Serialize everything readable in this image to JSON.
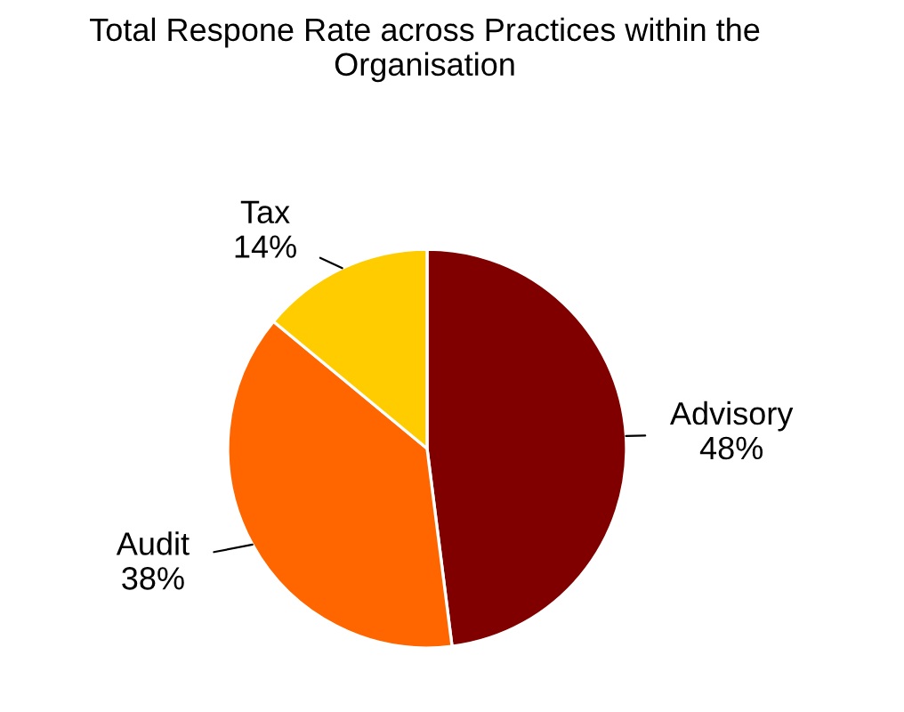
{
  "chart_data": {
    "type": "pie",
    "title": "Total Respone Rate across Practices within the Organisation",
    "categories": [
      "Advisory",
      "Audit",
      "Tax"
    ],
    "values": [
      48,
      38,
      14
    ],
    "colors": [
      "#800000",
      "#ff6600",
      "#ffcc00"
    ],
    "value_labels": [
      "48%",
      "38%",
      "14%"
    ],
    "legend": false
  }
}
